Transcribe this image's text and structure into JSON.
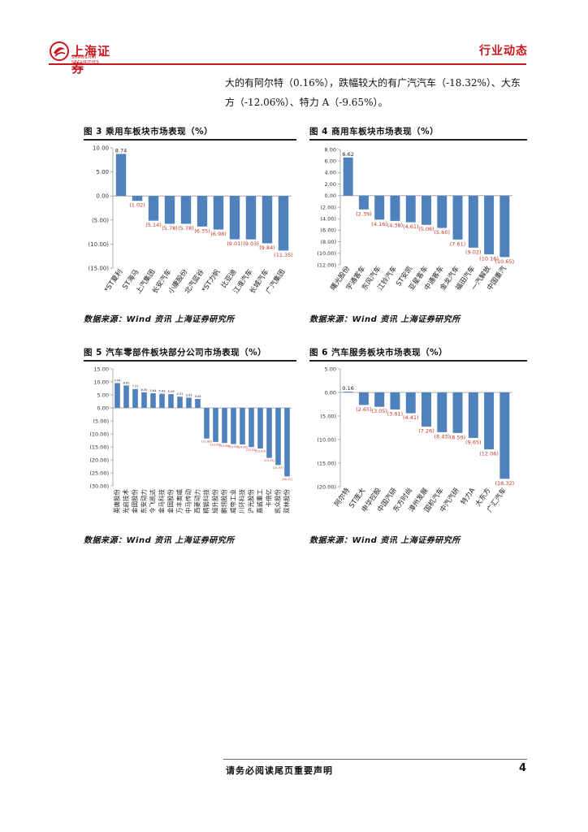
{
  "header": {
    "logo_text": "上海证券",
    "logo_sub": "SHANGHAI SECURITIES",
    "section_title": "行业动态"
  },
  "paragraph": {
    "line1": "大的有阿尔特（0.16%），跌幅较大的有广汽汽车（-18.32%）、大东",
    "line2": "方（-12.06%）、特力 A（-9.65%）。"
  },
  "figures": [
    {
      "title": "图 3 乘用车板块市场表现（%）",
      "source": "数据来源：Wind 资讯 上海证券研究所"
    },
    {
      "title": "图 4 商用车板块市场表现（%）",
      "source": "数据来源：Wind 资讯 上海证券研究所"
    },
    {
      "title": "图 5 汽车零部件板块部分公司市场表现（%）",
      "source": "数据来源：Wind 资讯 上海证券研究所"
    },
    {
      "title": "图 6 汽车服务板块市场表现（%）",
      "source": "数据来源：Wind 资讯 上海证券研究所"
    }
  ],
  "footer": {
    "note": "请务必阅读尾页重要声明",
    "page": "4"
  },
  "chart_data": [
    {
      "type": "bar",
      "title": "图 3 乘用车板块市场表现（%）",
      "categories": [
        "*ST夏利",
        "ST海马",
        "上汽集团",
        "长安汽车",
        "小康股份",
        "北汽蓝谷",
        "*ST力帆",
        "比亚迪",
        "江淮汽车",
        "长城汽车",
        "广汽集团"
      ],
      "values": [
        8.74,
        -1.02,
        -5.14,
        -5.78,
        -5.78,
        -6.35,
        -6.98,
        -9.01,
        -9.03,
        -9.84,
        -11.35
      ],
      "labels": [
        "8.74",
        "(1.02)",
        "(5.14)",
        "(5.78)",
        "(5.78)",
        "(6.35)",
        "(6.98)",
        "(9.01)",
        "(9.03)",
        "(9.84)",
        "(11.35)"
      ],
      "ylim": [
        -15,
        10
      ],
      "yticks": [
        10,
        5,
        0,
        -5,
        -10,
        -15
      ],
      "ytick_labels": [
        "10.00",
        "5.00",
        "0.00",
        "(5.00)",
        "(10.00)",
        "(15.00)"
      ],
      "bar_color": "#4f81bd",
      "label_color": "#c0392b"
    },
    {
      "type": "bar",
      "title": "图 4 商用车板块市场表现（%）",
      "categories": [
        "曙光股份",
        "宇通客车",
        "东风汽车",
        "江铃汽车",
        "ST安凯",
        "亚星客车",
        "中通客车",
        "金龙汽车",
        "福田汽车",
        "一汽解放",
        "中国重汽"
      ],
      "values": [
        6.62,
        -2.39,
        -4.16,
        -4.38,
        -4.61,
        -5.06,
        -5.6,
        -7.61,
        -9.02,
        -10.16,
        -10.65
      ],
      "labels": [
        "6.62",
        "(2.39)",
        "(4.16)",
        "(4.38)",
        "(4.61)",
        "(5.06)",
        "(5.60)",
        "(7.61)",
        "(9.02)",
        "(10.16)",
        "(10.65)"
      ],
      "ylim": [
        -12,
        8
      ],
      "yticks": [
        8,
        6,
        4,
        2,
        0,
        -2,
        -4,
        -6,
        -8,
        -10,
        -12
      ],
      "ytick_labels": [
        "8.00",
        "6.00",
        "4.00",
        "2.00",
        "0.00",
        "(2.00)",
        "(4.00)",
        "(6.00)",
        "(8.00)",
        "(10.00)",
        "(12.00)"
      ],
      "bar_color": "#4f81bd",
      "label_color": "#c0392b"
    },
    {
      "type": "bar",
      "title": "图 5 汽车零部件板块部分公司市场表现（%）",
      "categories": [
        "英唐股份",
        "光启技术",
        "金固股份",
        "东安动力",
        "今飞凯达",
        "金马科技",
        "金固股份",
        "万丰奥威",
        "中马传动",
        "西菱动力",
        "精锻科技",
        "旭升股份",
        "鹏翎股份",
        "威帝工业",
        "川环科技",
        "沪光股份",
        "嘉诚重工",
        "卡倍亿",
        "凯众股份",
        "双林股份"
      ],
      "values": [
        9.54,
        8.62,
        7.27,
        6.0,
        5.64,
        5.43,
        5.29,
        4.31,
        3.93,
        3.44,
        -11.8,
        -13.09,
        -13.49,
        -13.92,
        -14.08,
        -15.08,
        -15.63,
        -19.25,
        -21.97,
        -26.37
      ],
      "labels": [
        "9.54",
        "8.62",
        "7.27",
        "6.00",
        "5.64",
        "5.43",
        "5.29",
        "4.31",
        "3.93",
        "3.44",
        "(11.80)",
        "(13.09)",
        "(13.49)",
        "(13.92)",
        "(14.08)",
        "(15.08)",
        "(15.63)",
        "(19.25)",
        "(21.97)",
        "(26.37)"
      ],
      "ylim": [
        -30,
        15
      ],
      "yticks": [
        15,
        10,
        5,
        0,
        -5,
        -10,
        -15,
        -20,
        -25,
        -30
      ],
      "ytick_labels": [
        "15.00",
        "10.00",
        "5.00",
        "0.00",
        "(5.00)",
        "(10.00)",
        "(15.00)",
        "(20.00)",
        "(25.00)",
        "(30.00)"
      ],
      "bar_color": "#4f81bd",
      "label_color": "#c0392b"
    },
    {
      "type": "bar",
      "title": "图 6 汽车服务板块市场表现（%）",
      "categories": [
        "阿尔特",
        "ST庞大",
        "申华控股",
        "中国汽研",
        "东方时尚",
        "漳州发展",
        "国机汽车",
        "中汽汽研",
        "特力A",
        "大东方",
        "广汇汽车"
      ],
      "values": [
        0.16,
        -2.65,
        -3.05,
        -3.61,
        -4.41,
        -7.26,
        -8.43,
        -8.59,
        -9.65,
        -12.06,
        -18.32
      ],
      "labels": [
        "0.16",
        "(2.65)",
        "(3.05)",
        "(3.61)",
        "(4.41)",
        "(7.26)",
        "(8.43)",
        "(8.59)",
        "(9.65)",
        "(12.06)",
        "(18.32)"
      ],
      "ylim": [
        -20,
        5
      ],
      "yticks": [
        5,
        0,
        -5,
        -10,
        -15,
        -20
      ],
      "ytick_labels": [
        "5.00",
        "0.00",
        "(5.00)",
        "(10.00)",
        "(15.00)",
        "(20.00)"
      ],
      "bar_color": "#4f81bd",
      "label_color": "#c0392b"
    }
  ]
}
